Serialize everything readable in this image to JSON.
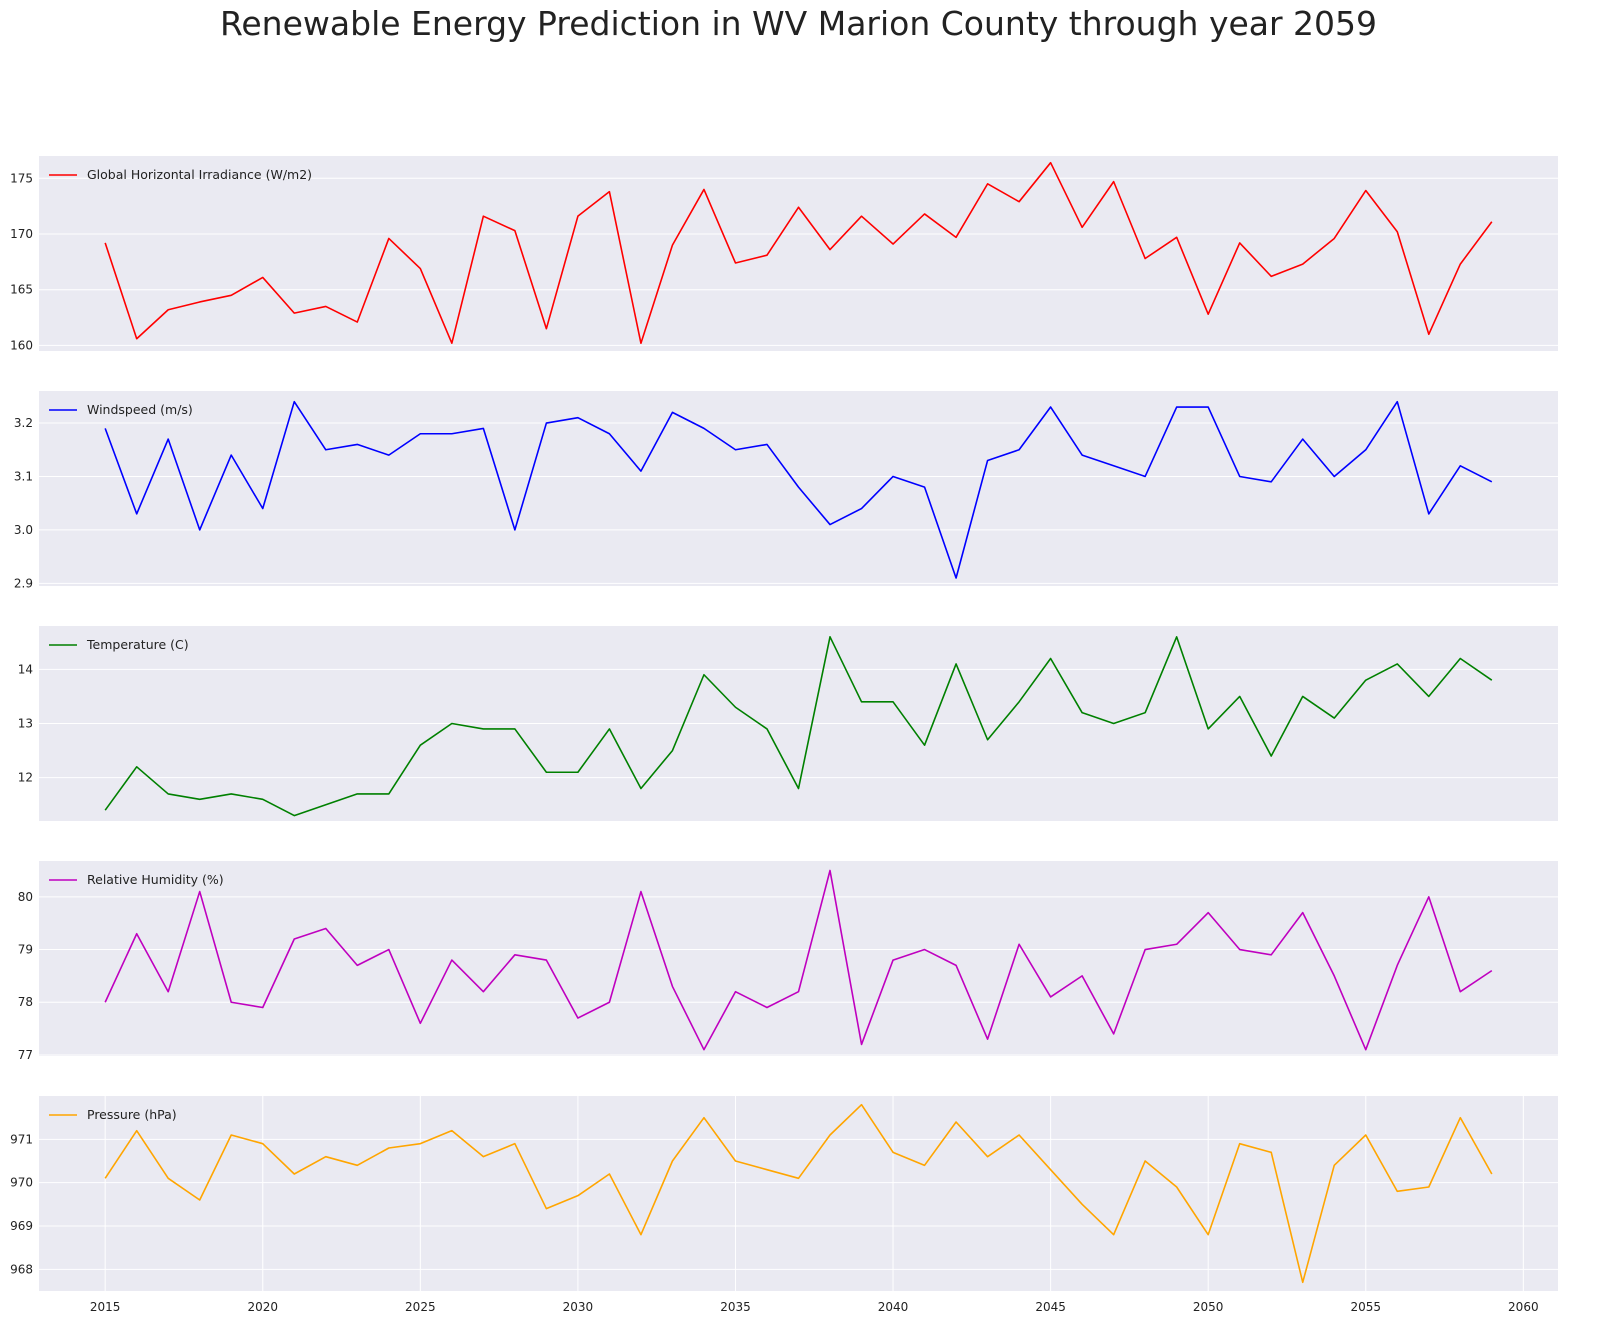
{
  "figure": {
    "title": "Renewable Energy Prediction in WV Marion County through year 2059",
    "panel_background": "#eaeaf2",
    "grid_color": "#ffffff"
  },
  "chart_data": [
    {
      "type": "line",
      "series": [
        {
          "name": "Global Horizontal Irradiance (W/m2)",
          "color": "#ff0000",
          "x": [
            2015,
            2016,
            2017,
            2018,
            2019,
            2020,
            2021,
            2022,
            2023,
            2024,
            2025,
            2026,
            2027,
            2028,
            2029,
            2030,
            2031,
            2032,
            2033,
            2034,
            2035,
            2036,
            2037,
            2038,
            2039,
            2040,
            2041,
            2042,
            2043,
            2044,
            2045,
            2046,
            2047,
            2048,
            2049,
            2050,
            2051,
            2052,
            2053,
            2054,
            2055,
            2056,
            2057,
            2058,
            2059
          ],
          "values": [
            169.2,
            160.6,
            163.2,
            163.9,
            164.5,
            166.1,
            162.9,
            163.5,
            162.1,
            169.6,
            166.9,
            160.2,
            171.6,
            170.3,
            161.5,
            171.6,
            173.8,
            160.2,
            169.0,
            174.0,
            167.4,
            168.1,
            172.4,
            168.6,
            171.6,
            169.1,
            171.8,
            169.7,
            174.5,
            172.9,
            176.4,
            170.6,
            174.7,
            167.8,
            169.7,
            162.8,
            169.2,
            166.2,
            167.3,
            169.6,
            173.9,
            170.2,
            161.0,
            167.3,
            171.1
          ]
        }
      ],
      "xlim": [
        2012.9,
        2061.1
      ],
      "ylim": [
        159.5,
        177.0
      ],
      "yticks": [
        160,
        165,
        170,
        175
      ],
      "xticks": [],
      "grid": true,
      "legend": "upper-left"
    },
    {
      "type": "line",
      "series": [
        {
          "name": "Windspeed (m/s)",
          "color": "#0000ff",
          "x": [
            2015,
            2016,
            2017,
            2018,
            2019,
            2020,
            2021,
            2022,
            2023,
            2024,
            2025,
            2026,
            2027,
            2028,
            2029,
            2030,
            2031,
            2032,
            2033,
            2034,
            2035,
            2036,
            2037,
            2038,
            2039,
            2040,
            2041,
            2042,
            2043,
            2044,
            2045,
            2046,
            2047,
            2048,
            2049,
            2050,
            2051,
            2052,
            2053,
            2054,
            2055,
            2056,
            2057,
            2058,
            2059
          ],
          "values": [
            3.19,
            3.03,
            3.17,
            3.0,
            3.14,
            3.04,
            3.24,
            3.15,
            3.16,
            3.14,
            3.18,
            3.18,
            3.19,
            3.0,
            3.2,
            3.21,
            3.18,
            3.11,
            3.22,
            3.19,
            3.15,
            3.16,
            3.08,
            3.01,
            3.04,
            3.1,
            3.08,
            2.91,
            3.13,
            3.15,
            3.23,
            3.14,
            3.12,
            3.1,
            3.23,
            3.23,
            3.1,
            3.09,
            3.17,
            3.1,
            3.15,
            3.24,
            3.03,
            3.12,
            3.09
          ]
        }
      ],
      "xlim": [
        2012.9,
        2061.1
      ],
      "ylim": [
        2.895,
        3.26
      ],
      "yticks": [
        2.9,
        3.0,
        3.1,
        3.2
      ],
      "xticks": [],
      "grid": true,
      "legend": "upper-left"
    },
    {
      "type": "line",
      "series": [
        {
          "name": "Temperature (C)",
          "color": "#008000",
          "x": [
            2015,
            2016,
            2017,
            2018,
            2019,
            2020,
            2021,
            2022,
            2023,
            2024,
            2025,
            2026,
            2027,
            2028,
            2029,
            2030,
            2031,
            2032,
            2033,
            2034,
            2035,
            2036,
            2037,
            2038,
            2039,
            2040,
            2041,
            2042,
            2043,
            2044,
            2045,
            2046,
            2047,
            2048,
            2049,
            2050,
            2051,
            2052,
            2053,
            2054,
            2055,
            2056,
            2057,
            2058,
            2059
          ],
          "values": [
            11.4,
            12.2,
            11.7,
            11.6,
            11.7,
            11.6,
            11.3,
            11.5,
            11.7,
            11.7,
            12.6,
            13.0,
            12.9,
            12.9,
            12.1,
            12.1,
            12.9,
            11.8,
            12.5,
            13.9,
            13.3,
            12.9,
            11.8,
            14.6,
            13.4,
            13.4,
            12.6,
            14.1,
            12.7,
            13.4,
            14.2,
            13.2,
            13.0,
            13.2,
            14.6,
            12.9,
            13.5,
            12.4,
            13.5,
            13.1,
            13.8,
            14.1,
            13.5,
            14.2,
            13.8
          ]
        }
      ],
      "xlim": [
        2012.9,
        2061.1
      ],
      "ylim": [
        11.2,
        14.8
      ],
      "yticks": [
        12,
        13,
        14
      ],
      "xticks": [],
      "grid": true,
      "legend": "upper-left"
    },
    {
      "type": "line",
      "series": [
        {
          "name": "Relative Humidity (%)",
          "color": "#bf00bf",
          "x": [
            2015,
            2016,
            2017,
            2018,
            2019,
            2020,
            2021,
            2022,
            2023,
            2024,
            2025,
            2026,
            2027,
            2028,
            2029,
            2030,
            2031,
            2032,
            2033,
            2034,
            2035,
            2036,
            2037,
            2038,
            2039,
            2040,
            2041,
            2042,
            2043,
            2044,
            2045,
            2046,
            2047,
            2048,
            2049,
            2050,
            2051,
            2052,
            2053,
            2054,
            2055,
            2056,
            2057,
            2058,
            2059
          ],
          "values": [
            78.0,
            79.3,
            78.2,
            80.1,
            78.0,
            77.9,
            79.2,
            79.4,
            78.7,
            79.0,
            77.6,
            78.8,
            78.2,
            78.9,
            78.8,
            77.7,
            78.0,
            80.1,
            78.3,
            77.1,
            78.2,
            77.9,
            78.2,
            80.5,
            77.2,
            78.8,
            79.0,
            78.7,
            77.3,
            79.1,
            78.1,
            78.5,
            77.4,
            79.0,
            79.1,
            79.7,
            79.0,
            78.9,
            79.7,
            78.5,
            77.1,
            78.7,
            80.0,
            78.2,
            78.6
          ]
        }
      ],
      "xlim": [
        2012.9,
        2061.1
      ],
      "ylim": [
        76.98,
        80.68
      ],
      "yticks": [
        77,
        78,
        79,
        80
      ],
      "xticks": [],
      "grid": true,
      "legend": "upper-left"
    },
    {
      "type": "line",
      "series": [
        {
          "name": "Pressure (hPa)",
          "color": "#ffa500",
          "x": [
            2015,
            2016,
            2017,
            2018,
            2019,
            2020,
            2021,
            2022,
            2023,
            2024,
            2025,
            2026,
            2027,
            2028,
            2029,
            2030,
            2031,
            2032,
            2033,
            2034,
            2035,
            2036,
            2037,
            2038,
            2039,
            2040,
            2041,
            2042,
            2043,
            2044,
            2045,
            2046,
            2047,
            2048,
            2049,
            2050,
            2051,
            2052,
            2053,
            2054,
            2055,
            2056,
            2057,
            2058,
            2059
          ],
          "values": [
            970.1,
            971.2,
            970.1,
            969.6,
            971.1,
            970.9,
            970.2,
            970.6,
            970.4,
            970.8,
            970.9,
            971.2,
            970.6,
            970.9,
            969.4,
            969.7,
            970.2,
            968.8,
            970.5,
            971.5,
            970.5,
            970.3,
            970.1,
            971.1,
            971.8,
            970.7,
            970.4,
            971.4,
            970.6,
            971.1,
            970.3,
            969.5,
            968.8,
            970.5,
            969.9,
            968.8,
            970.9,
            970.7,
            967.7,
            970.4,
            971.1,
            969.8,
            969.9,
            971.5,
            970.2
          ]
        }
      ],
      "xlim": [
        2012.9,
        2061.1
      ],
      "ylim": [
        967.5,
        972.0
      ],
      "yticks": [
        968,
        969,
        970,
        971
      ],
      "xticks": [
        2015,
        2020,
        2025,
        2030,
        2035,
        2040,
        2045,
        2050,
        2055,
        2060
      ],
      "grid": true,
      "legend": "upper-left"
    }
  ]
}
